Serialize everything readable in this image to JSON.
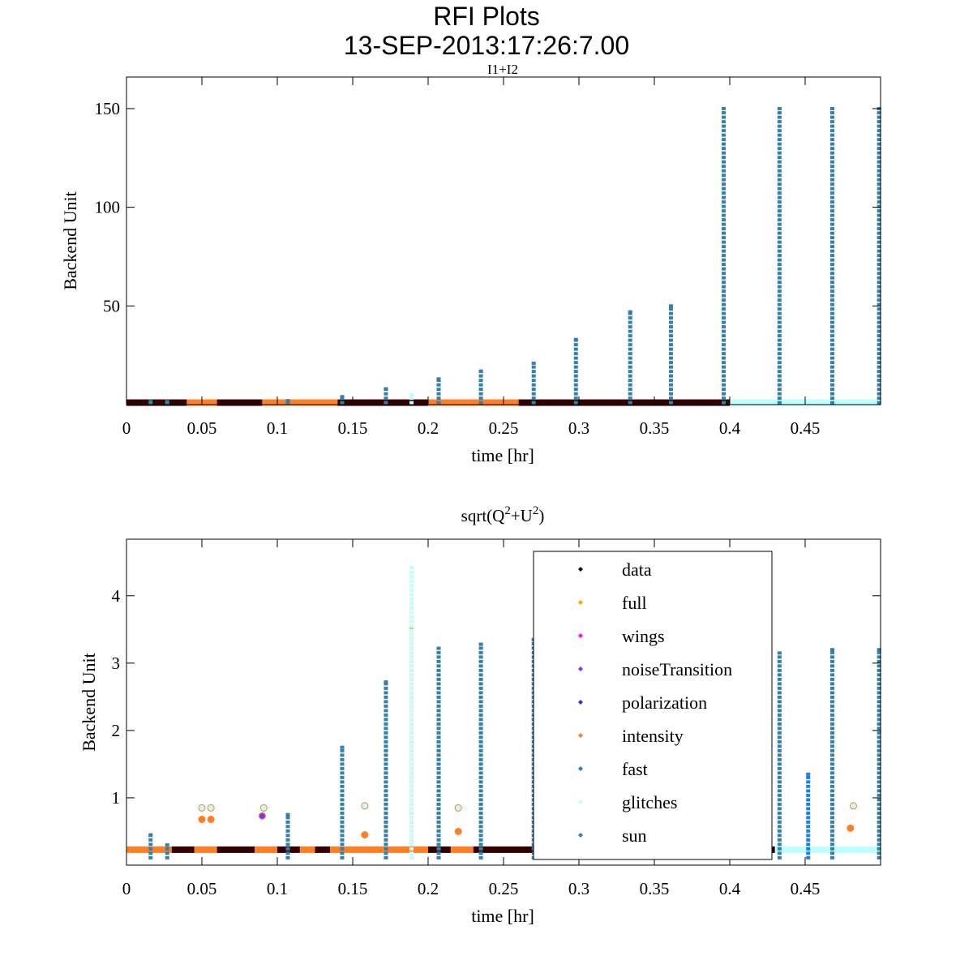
{
  "chart_data": {
    "type": "scatter",
    "title": "RFI Plots",
    "subtitle": "13-SEP-2013:17:26:7.00",
    "legend": {
      "placement": "lower-right of bottom panel",
      "entries": [
        {
          "name": "data",
          "color": "#330000"
        },
        {
          "name": "full",
          "color": "#ffa500"
        },
        {
          "name": "wings",
          "color": "#ff00ff"
        },
        {
          "name": "noiseTransition",
          "color": "#8033ff"
        },
        {
          "name": "polarization",
          "color": "#3333cc"
        },
        {
          "name": "intensity",
          "color": "#ff7f27"
        },
        {
          "name": "fast",
          "color": "#1e80e6"
        },
        {
          "name": "glitches",
          "color": "#c0ffff"
        },
        {
          "name": "sun",
          "color": "#3380aa"
        }
      ]
    },
    "panels": [
      {
        "title": "I1+I2",
        "xlabel": "time [hr]",
        "ylabel": "Backend Unit",
        "xlim": [
          0,
          0.5
        ],
        "ylim": [
          0,
          166
        ],
        "xticks": [
          "0",
          "0.05",
          "0.1",
          "0.15",
          "0.2",
          "0.25",
          "0.3",
          "0.35",
          "0.4",
          "0.45"
        ],
        "xtick_values": [
          0,
          0.05,
          0.1,
          0.15,
          0.2,
          0.25,
          0.3,
          0.35,
          0.4,
          0.45
        ],
        "yticks": [
          "50",
          "100",
          "150"
        ],
        "ytick_values": [
          50,
          100,
          150
        ],
        "baseline": 1,
        "baseline_segments": [
          {
            "x0": 0,
            "x1": 0.04,
            "series": "data"
          },
          {
            "x0": 0.04,
            "x1": 0.06,
            "series": "intensity"
          },
          {
            "x0": 0.06,
            "x1": 0.09,
            "series": "data"
          },
          {
            "x0": 0.09,
            "x1": 0.14,
            "series": "intensity"
          },
          {
            "x0": 0.14,
            "x1": 0.2,
            "series": "data"
          },
          {
            "x0": 0.2,
            "x1": 0.26,
            "series": "intensity"
          },
          {
            "x0": 0.26,
            "x1": 0.4,
            "series": "data"
          },
          {
            "x0": 0.4,
            "x1": 0.5,
            "series": "glitches"
          }
        ],
        "spikes": [
          {
            "x": 0.016,
            "y": 1.5,
            "series": "sun"
          },
          {
            "x": 0.027,
            "y": 1.5,
            "series": "sun"
          },
          {
            "x": 0.107,
            "y": 2,
            "series": "sun"
          },
          {
            "x": 0.143,
            "y": 4,
            "series": "sun"
          },
          {
            "x": 0.172,
            "y": 8,
            "series": "sun"
          },
          {
            "x": 0.189,
            "y": 5,
            "series": "glitches"
          },
          {
            "x": 0.207,
            "y": 13,
            "series": "sun"
          },
          {
            "x": 0.235,
            "y": 17,
            "series": "sun"
          },
          {
            "x": 0.27,
            "y": 21,
            "series": "sun"
          },
          {
            "x": 0.298,
            "y": 33,
            "series": "sun"
          },
          {
            "x": 0.334,
            "y": 47,
            "series": "sun"
          },
          {
            "x": 0.361,
            "y": 50,
            "series": "sun"
          },
          {
            "x": 0.396,
            "y": 150,
            "series": "sun"
          },
          {
            "x": 0.433,
            "y": 150,
            "series": "sun"
          },
          {
            "x": 0.468,
            "y": 150,
            "series": "sun"
          },
          {
            "x": 0.499,
            "y": 150,
            "series": "sun"
          }
        ]
      },
      {
        "title": "sqrt(Q2+U2)",
        "title_parts": [
          "sqrt(Q",
          "2",
          "+U",
          "2",
          ")"
        ],
        "xlabel": "time [hr]",
        "ylabel": "Backend Unit",
        "xlim": [
          0,
          0.5
        ],
        "ylim": [
          0,
          4.84
        ],
        "xticks": [
          "0",
          "0.05",
          "0.1",
          "0.15",
          "0.2",
          "0.25",
          "0.3",
          "0.35",
          "0.4",
          "0.45"
        ],
        "xtick_values": [
          0,
          0.05,
          0.1,
          0.15,
          0.2,
          0.25,
          0.3,
          0.35,
          0.4,
          0.45
        ],
        "yticks": [
          "1",
          "2",
          "3",
          "4"
        ],
        "ytick_values": [
          1,
          2,
          3,
          4
        ],
        "baseline": 0.23,
        "baseline_segments": [
          {
            "x0": 0,
            "x1": 0.03,
            "series": "intensity"
          },
          {
            "x0": 0.03,
            "x1": 0.045,
            "series": "data"
          },
          {
            "x0": 0.045,
            "x1": 0.06,
            "series": "intensity"
          },
          {
            "x0": 0.06,
            "x1": 0.085,
            "series": "data"
          },
          {
            "x0": 0.085,
            "x1": 0.1,
            "series": "intensity"
          },
          {
            "x0": 0.1,
            "x1": 0.115,
            "series": "data"
          },
          {
            "x0": 0.115,
            "x1": 0.125,
            "series": "intensity"
          },
          {
            "x0": 0.125,
            "x1": 0.135,
            "series": "data"
          },
          {
            "x0": 0.135,
            "x1": 0.17,
            "series": "intensity"
          },
          {
            "x0": 0.17,
            "x1": 0.2,
            "series": "intensity"
          },
          {
            "x0": 0.2,
            "x1": 0.215,
            "series": "data"
          },
          {
            "x0": 0.215,
            "x1": 0.23,
            "series": "intensity"
          },
          {
            "x0": 0.23,
            "x1": 0.43,
            "series": "data"
          },
          {
            "x0": 0.43,
            "x1": 0.5,
            "series": "glitches"
          }
        ],
        "outliers": [
          {
            "x": 0.05,
            "y": 0.85,
            "series": "glitches"
          },
          {
            "x": 0.056,
            "y": 0.85,
            "series": "glitches"
          },
          {
            "x": 0.05,
            "y": 0.68,
            "series": "intensity"
          },
          {
            "x": 0.056,
            "y": 0.68,
            "series": "intensity"
          },
          {
            "x": 0.091,
            "y": 0.85,
            "series": "glitches"
          },
          {
            "x": 0.09,
            "y": 0.73,
            "series": "noiseTransition"
          },
          {
            "x": 0.158,
            "y": 0.88,
            "series": "glitches"
          },
          {
            "x": 0.158,
            "y": 0.45,
            "series": "intensity"
          },
          {
            "x": 0.22,
            "y": 0.85,
            "series": "glitches"
          },
          {
            "x": 0.22,
            "y": 0.5,
            "series": "intensity"
          },
          {
            "x": 0.482,
            "y": 0.88,
            "series": "glitches"
          },
          {
            "x": 0.48,
            "y": 0.55,
            "series": "intensity"
          }
        ],
        "spikes": [
          {
            "x": 0.016,
            "y": 0.45,
            "series": "sun"
          },
          {
            "x": 0.027,
            "y": 0.3,
            "series": "sun"
          },
          {
            "x": 0.107,
            "y": 0.75,
            "series": "sun"
          },
          {
            "x": 0.143,
            "y": 1.75,
            "series": "sun"
          },
          {
            "x": 0.172,
            "y": 2.72,
            "series": "sun"
          },
          {
            "x": 0.189,
            "y": 3.5,
            "series": "intensity"
          },
          {
            "x": 0.189,
            "y": 4.42,
            "series": "glitches"
          },
          {
            "x": 0.207,
            "y": 3.22,
            "series": "sun"
          },
          {
            "x": 0.235,
            "y": 3.28,
            "series": "sun"
          },
          {
            "x": 0.27,
            "y": 3.35,
            "series": "sun"
          },
          {
            "x": 0.433,
            "y": 3.15,
            "series": "sun"
          },
          {
            "x": 0.452,
            "y": 1.35,
            "series": "fast"
          },
          {
            "x": 0.468,
            "y": 3.2,
            "series": "sun"
          },
          {
            "x": 0.499,
            "y": 3.2,
            "series": "sun"
          }
        ]
      }
    ]
  }
}
